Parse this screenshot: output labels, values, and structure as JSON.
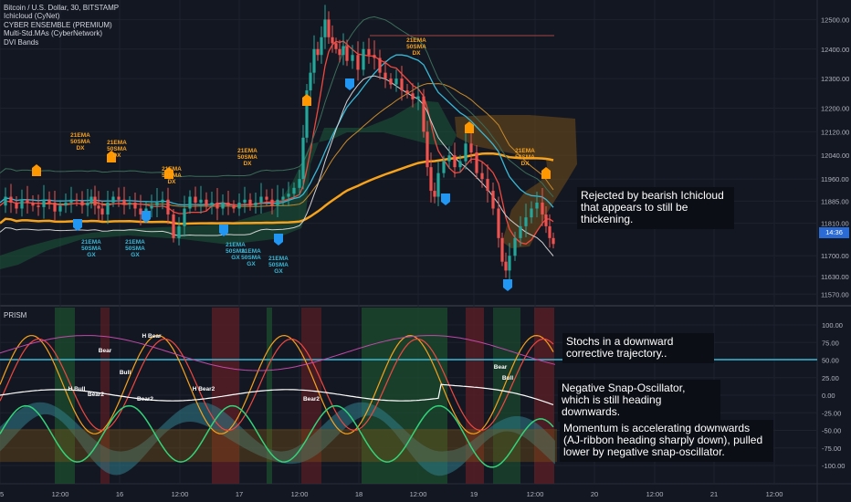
{
  "header": {
    "title": "Bitcoin / U.S. Dollar, 30, BITSTAMP",
    "indicators": [
      "Ichicloud (CyNet)",
      "CYBER ENSEMBLE (PREMIUM)",
      "Multi-Std.MAs (CyberNetwork)",
      "DVI Bands"
    ]
  },
  "price_axis": {
    "ticks": [
      "12500.00",
      "12400.00",
      "12300.00",
      "12200.00",
      "12120.00",
      "12040.00",
      "11960.00",
      "11885.00",
      "11810.00",
      "11700.00",
      "11630.00",
      "11570.00"
    ],
    "current_price": "14:36"
  },
  "time_axis": {
    "ticks": [
      "15",
      "12:00",
      "16",
      "12:00",
      "17",
      "12:00",
      "18",
      "12:00",
      "19",
      "12:00",
      "20",
      "12:00",
      "21",
      "12:00"
    ]
  },
  "oscillator": {
    "title": "PRISM",
    "ticks": [
      "100.00",
      "75.00",
      "50.00",
      "25.00",
      "0.00",
      "-25.00",
      "-50.00",
      "-75.00",
      "-100.00"
    ]
  },
  "annotations": [
    "Rejected by bearish Ichicloud that appears to still be thickening.",
    "Stochs in a downward corrective trajectory..",
    "Negative Snap-Oscillator, which is still heading downwards.",
    "Momentum is accelerating downwards (AJ-ribbon heading sharply down), pulled lower by negative snap-oscillator."
  ],
  "signals": {
    "bear_labels": [
      "Bear",
      "H Bear",
      "Bull",
      "H Bull",
      "Bear2",
      "Bear2",
      "H Bear2",
      "Bear2",
      "Bear",
      "Bull"
    ],
    "cross_labels": [
      "21EMA",
      "50SMA",
      "DX",
      "GX"
    ]
  },
  "colors": {
    "background": "#131722",
    "up_candle": "#26a69a",
    "down_candle": "#ef5350",
    "ma_orange": "#f7a21b",
    "ema_red": "#f0483e",
    "sma_cyan": "#39b8d6",
    "band_white": "#d0d0d0",
    "buy_marker": "#2196f3",
    "sell_marker": "#ff9800",
    "cloud_green": "#1e5a3a",
    "cloud_orange": "#6a4a1a"
  },
  "chart_data": {
    "type": "candlestick",
    "symbol": "Bitcoin / U.S. Dollar",
    "interval": "30",
    "exchange": "BITSTAMP",
    "ylim": [
      11540,
      12560
    ],
    "price_path": [
      [
        0,
        11870
      ],
      [
        6,
        11900
      ],
      [
        12,
        11880
      ],
      [
        18,
        11860
      ],
      [
        24,
        11890
      ],
      [
        30,
        11880
      ],
      [
        36,
        11870
      ],
      [
        42,
        11865
      ],
      [
        48,
        11890
      ],
      [
        54,
        11880
      ],
      [
        60,
        11850
      ],
      [
        66,
        11870
      ],
      [
        72,
        11880
      ],
      [
        78,
        11890
      ],
      [
        84,
        11885
      ],
      [
        90,
        11870
      ],
      [
        96,
        11880
      ],
      [
        100,
        11900
      ],
      [
        104,
        11870
      ],
      [
        108,
        11860
      ],
      [
        112,
        11840
      ],
      [
        118,
        11880
      ],
      [
        124,
        11900
      ],
      [
        130,
        11890
      ],
      [
        136,
        11875
      ],
      [
        142,
        11880
      ],
      [
        148,
        11860
      ],
      [
        154,
        11840
      ],
      [
        160,
        11860
      ],
      [
        166,
        11870
      ],
      [
        172,
        11880
      ],
      [
        178,
        11890
      ],
      [
        184,
        11840
      ],
      [
        190,
        11760
      ],
      [
        196,
        11800
      ],
      [
        202,
        11860
      ],
      [
        208,
        11900
      ],
      [
        214,
        11880
      ],
      [
        220,
        11890
      ],
      [
        226,
        11870
      ],
      [
        232,
        11880
      ],
      [
        238,
        11860
      ],
      [
        244,
        11880
      ],
      [
        250,
        11870
      ],
      [
        256,
        11860
      ],
      [
        262,
        11880
      ],
      [
        268,
        11890
      ],
      [
        274,
        11870
      ],
      [
        280,
        11880
      ],
      [
        286,
        11900
      ],
      [
        292,
        11890
      ],
      [
        298,
        11870
      ],
      [
        304,
        11890
      ],
      [
        310,
        11900
      ],
      [
        316,
        11910
      ],
      [
        322,
        11930
      ],
      [
        328,
        11960
      ],
      [
        332,
        12100
      ],
      [
        336,
        12260
      ],
      [
        340,
        12320
      ],
      [
        344,
        12400
      ],
      [
        348,
        12380
      ],
      [
        352,
        12440
      ],
      [
        356,
        12500
      ],
      [
        360,
        12440
      ],
      [
        364,
        12420
      ],
      [
        368,
        12400
      ],
      [
        372,
        12380
      ],
      [
        376,
        12410
      ],
      [
        380,
        12360
      ],
      [
        386,
        12380
      ],
      [
        392,
        12330
      ],
      [
        398,
        12400
      ],
      [
        404,
        12380
      ],
      [
        410,
        12370
      ],
      [
        416,
        12320
      ],
      [
        422,
        12300
      ],
      [
        428,
        12280
      ],
      [
        434,
        12300
      ],
      [
        440,
        12260
      ],
      [
        446,
        12250
      ],
      [
        452,
        12230
      ],
      [
        458,
        12240
      ],
      [
        464,
        12120
      ],
      [
        468,
        12000
      ],
      [
        472,
        11920
      ],
      [
        476,
        11900
      ],
      [
        480,
        11980
      ],
      [
        486,
        12020
      ],
      [
        492,
        12040
      ],
      [
        498,
        12000
      ],
      [
        504,
        12020
      ],
      [
        510,
        12080
      ],
      [
        516,
        12050
      ],
      [
        522,
        11980
      ],
      [
        528,
        11960
      ],
      [
        534,
        11920
      ],
      [
        540,
        11860
      ],
      [
        546,
        11760
      ],
      [
        550,
        11680
      ],
      [
        554,
        11650
      ],
      [
        558,
        11700
      ],
      [
        564,
        11760
      ],
      [
        570,
        11800
      ],
      [
        576,
        11830
      ],
      [
        582,
        11860
      ],
      [
        588,
        11880
      ],
      [
        594,
        11840
      ],
      [
        598,
        11800
      ],
      [
        602,
        11760
      ],
      [
        606,
        11740
      ]
    ],
    "series_names": [
      "Ichicloud (CyNet)",
      "CYBER ENSEMBLE (PREMIUM)",
      "Multi-Std.MAs (CyberNetwork)",
      "DVI Bands"
    ],
    "oscillator_ylim": [
      -105,
      105
    ],
    "oscillator_ticks": [
      100,
      75,
      50,
      25,
      0,
      -25,
      -50,
      -75,
      -100
    ]
  }
}
